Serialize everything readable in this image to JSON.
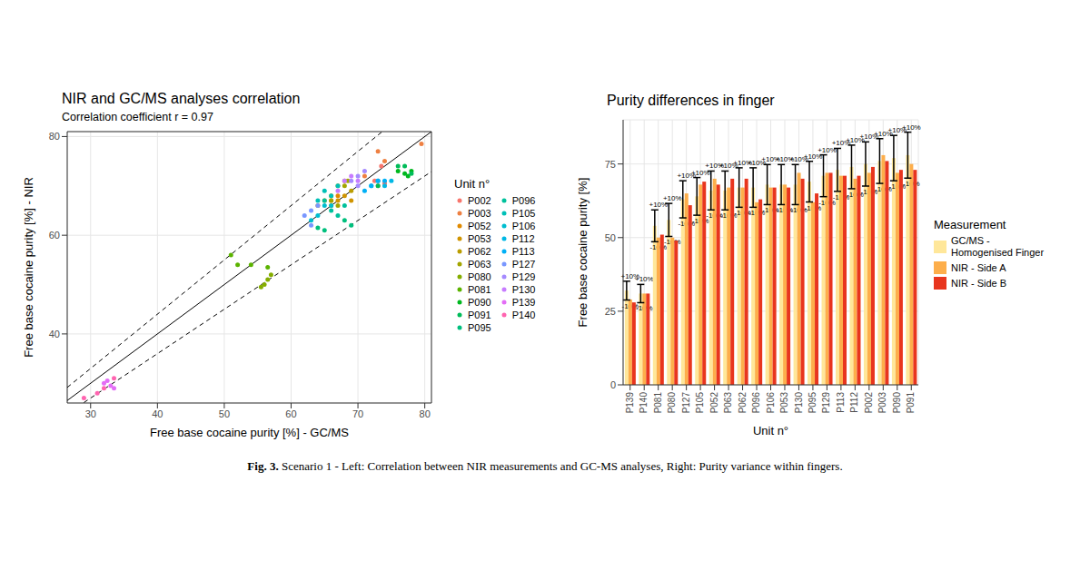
{
  "chart_data": [
    {
      "type": "scatter",
      "title": "NIR and GC/MS analyses correlation",
      "subtitle": "Correlation coefficient r = 0.97",
      "x_label": "Free base cocaine purity [%] - GC/MS",
      "y_label": "Free base cocaine purity [%] - NIR",
      "xlim": [
        26.5,
        81
      ],
      "xticks": [
        30,
        40,
        50,
        60,
        70,
        80
      ],
      "ylim": [
        26,
        81
      ],
      "yticks": [
        40,
        60,
        80
      ],
      "grid": true,
      "legend": "right",
      "legend_title": "Unit n°",
      "series": [
        {
          "name": "P002",
          "color": "#F8766D",
          "marker": "circle",
          "x": [
            73,
            73.5,
            74,
            72.5
          ],
          "values": [
            70,
            74,
            70.5,
            71
          ]
        },
        {
          "name": "P003",
          "color": "#EE8042",
          "marker": "circle",
          "x": [
            79.5,
            73,
            74,
            71
          ],
          "values": [
            78.5,
            77,
            75,
            72
          ]
        },
        {
          "name": "P052",
          "color": "#E18A00",
          "marker": "circle",
          "x": [
            64,
            65,
            66,
            67
          ],
          "values": [
            66,
            67,
            67,
            68
          ]
        },
        {
          "name": "P053",
          "color": "#D09400",
          "marker": "circle",
          "x": [
            67,
            68,
            69,
            66
          ],
          "values": [
            67,
            68,
            67,
            66
          ]
        },
        {
          "name": "P062",
          "color": "#BB9D00",
          "marker": "circle",
          "x": [
            67,
            68,
            66,
            69
          ],
          "values": [
            70,
            71,
            68,
            69
          ]
        },
        {
          "name": "P063",
          "color": "#A3A500",
          "marker": "circle",
          "x": [
            68,
            68.5,
            67,
            66
          ],
          "values": [
            70,
            71,
            66,
            67
          ]
        },
        {
          "name": "P080",
          "color": "#85AD00",
          "marker": "circle",
          "x": [
            56,
            56.5,
            57,
            55.5
          ],
          "values": [
            50,
            51,
            52,
            49.5
          ]
        },
        {
          "name": "P081",
          "color": "#5BB300",
          "marker": "circle",
          "x": [
            51,
            52,
            54,
            56.5
          ],
          "values": [
            56,
            54,
            54,
            53.5
          ]
        },
        {
          "name": "P090",
          "color": "#00B81F",
          "marker": "circle",
          "x": [
            76,
            77,
            78,
            77.5
          ],
          "values": [
            73,
            72.5,
            73,
            72
          ]
        },
        {
          "name": "P091",
          "color": "#00BC59",
          "marker": "circle",
          "x": [
            76,
            77,
            78,
            73
          ],
          "values": [
            74,
            74,
            72.5,
            70
          ]
        },
        {
          "name": "P095",
          "color": "#00BF7D",
          "marker": "circle",
          "x": [
            64,
            65,
            68,
            69
          ],
          "values": [
            61.5,
            61,
            63,
            62
          ]
        },
        {
          "name": "P096",
          "color": "#00C19C",
          "marker": "circle",
          "x": [
            65,
            66,
            67,
            68
          ],
          "values": [
            67,
            65,
            64,
            66
          ]
        },
        {
          "name": "P105",
          "color": "#00C0B7",
          "marker": "circle",
          "x": [
            64,
            65,
            66,
            67
          ],
          "values": [
            67,
            69,
            68,
            70
          ]
        },
        {
          "name": "P106",
          "color": "#00BDD0",
          "marker": "circle",
          "x": [
            63,
            64,
            65,
            66
          ],
          "values": [
            63,
            64,
            66,
            66
          ]
        },
        {
          "name": "P112",
          "color": "#00B8E5",
          "marker": "circle",
          "x": [
            72,
            73,
            74,
            75
          ],
          "values": [
            70,
            71,
            70,
            71
          ]
        },
        {
          "name": "P113",
          "color": "#00B0F6",
          "marker": "circle",
          "x": [
            71,
            72,
            73,
            74
          ],
          "values": [
            69,
            70,
            71,
            71
          ]
        },
        {
          "name": "P127",
          "color": "#7997FF",
          "marker": "circle",
          "x": [
            62,
            63,
            64,
            63
          ],
          "values": [
            64,
            65,
            66,
            62
          ]
        },
        {
          "name": "P129",
          "color": "#A58AFF",
          "marker": "circle",
          "x": [
            69,
            70,
            71,
            70
          ],
          "values": [
            71,
            72,
            73,
            70
          ]
        },
        {
          "name": "P130",
          "color": "#C77CFF",
          "marker": "circle",
          "x": [
            67,
            68,
            69,
            70
          ],
          "values": [
            69,
            71,
            72,
            71
          ]
        },
        {
          "name": "P139",
          "color": "#E36EF6",
          "marker": "circle",
          "x": [
            32,
            33,
            33.5,
            32.5
          ],
          "values": [
            30,
            29.5,
            29,
            30.5
          ]
        },
        {
          "name": "P140",
          "color": "#FF64B0",
          "marker": "circle",
          "x": [
            29,
            31,
            32,
            33.5
          ],
          "values": [
            27,
            28,
            29,
            31
          ]
        },
        {
          "type": "line",
          "color": "#000000",
          "line_style": "solid",
          "x": [
            26.5,
            81
          ],
          "values": [
            26.5,
            81
          ]
        },
        {
          "type": "line",
          "color": "#000000",
          "line_style": "dashed",
          "x": [
            26.5,
            73.6
          ],
          "values": [
            29.15,
            80.96
          ]
        },
        {
          "type": "line",
          "color": "#000000",
          "line_style": "dashed",
          "x": [
            29,
            81
          ],
          "values": [
            26.1,
            72.9
          ]
        }
      ]
    },
    {
      "type": "bar",
      "title": "Purity differences in finger",
      "x_label": "Unit n°",
      "y_label": "Free base cocaine purity [%]",
      "ylim": [
        0,
        90
      ],
      "yticks": [
        0,
        25,
        50,
        75
      ],
      "grid": true,
      "legend": "right",
      "legend_title": "Measurement",
      "error_labels": {
        "upper": "+10%",
        "lower": "-10%"
      },
      "categories": [
        "P139",
        "P140",
        "P081",
        "P080",
        "P127",
        "P105",
        "P052",
        "P063",
        "P062",
        "P096",
        "P106",
        "P053",
        "P130",
        "P095",
        "P129",
        "P113",
        "P112",
        "P002",
        "P003",
        "P090",
        "P091"
      ],
      "series": [
        {
          "name": "GC/MS - Homogenised Finger",
          "color": "#FFE79A",
          "values": [
            32,
            31,
            54,
            56,
            63,
            64,
            66,
            66,
            67,
            67,
            68,
            68,
            68,
            69,
            71,
            73,
            74,
            75,
            76,
            77,
            78
          ],
          "errors": [
            3.2,
            3.1,
            5.4,
            5.6,
            6.3,
            6.4,
            6.6,
            6.6,
            6.7,
            6.7,
            6.8,
            6.8,
            6.8,
            6.9,
            7.1,
            7.3,
            7.4,
            7.5,
            7.6,
            7.7,
            7.8
          ]
        },
        {
          "name": "NIR - Side A",
          "color": "#FDAE4B",
          "values": [
            29,
            31,
            50,
            50,
            65,
            68,
            70,
            67,
            67,
            62,
            67,
            68,
            72,
            62,
            72,
            71,
            70,
            72,
            78,
            72,
            75
          ]
        },
        {
          "name": "NIR - Side B",
          "color": "#E8351E",
          "values": [
            28,
            31,
            51,
            49,
            61,
            69,
            68,
            70,
            70,
            63,
            67,
            67,
            70,
            65,
            72,
            71,
            71,
            74,
            76,
            73,
            73
          ]
        }
      ]
    }
  ],
  "caption": {
    "label": "Fig. 3.",
    "text": "Scenario 1 - Left: Correlation between NIR measurements and GC-MS analyses, Right: Purity variance within fingers."
  }
}
